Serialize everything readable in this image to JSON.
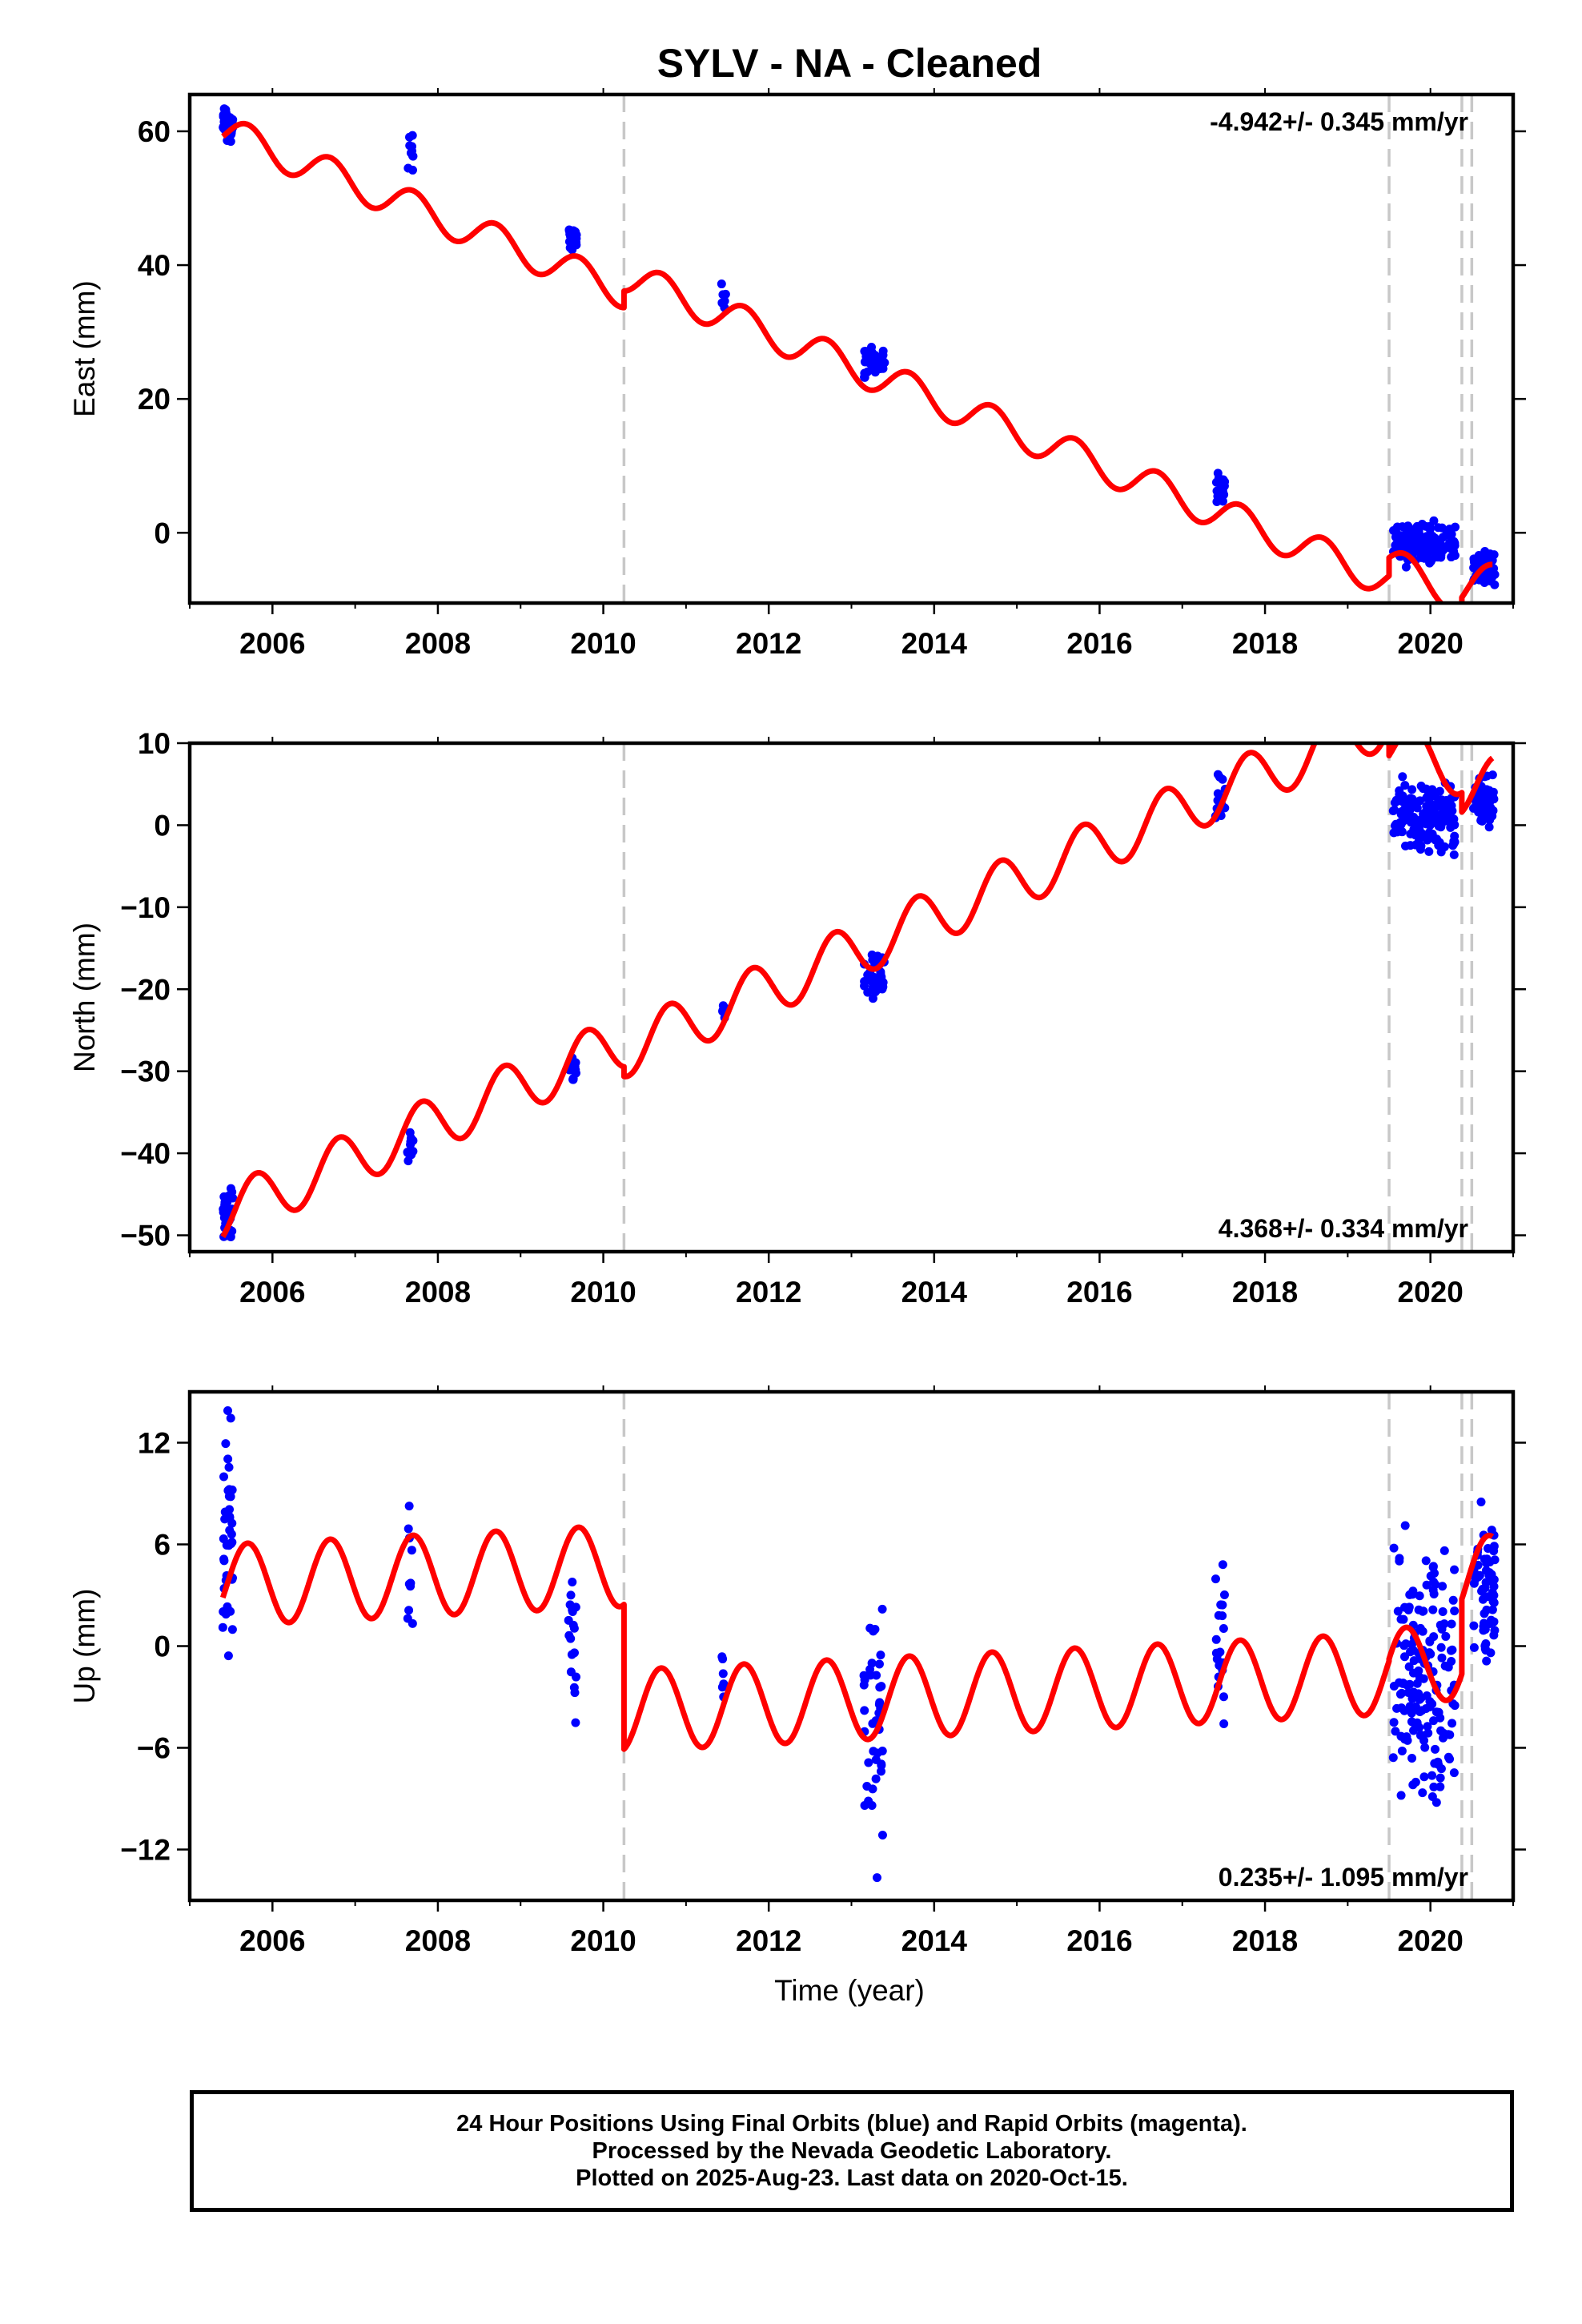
{
  "title": "SYLV  - NA - Cleaned",
  "colors": {
    "model": "#ff0000",
    "final_orbits": "#0000ff",
    "breaks": "#c8c8c8",
    "frame": "#000000"
  },
  "x_axis": {
    "label": "Time (year)",
    "range": [
      2005.0,
      2021.0
    ],
    "ticks": [
      2006,
      2008,
      2010,
      2012,
      2014,
      2016,
      2018,
      2020
    ],
    "tick_labels": [
      "2006",
      "2008",
      "2010",
      "2012",
      "2014",
      "2016",
      "2018",
      "2020"
    ]
  },
  "breaks": [
    2010.25,
    2019.5,
    2020.38,
    2020.5
  ],
  "chart_data": [
    {
      "type": "scatter",
      "name": "east",
      "ylabel": "East (mm)",
      "ylim": [
        -10.5,
        65.5
      ],
      "yticks": [
        0,
        20,
        40,
        60
      ],
      "rate_label": "-4.942+/- 0.345 mm/yr",
      "rate_position": "top-right",
      "model": {
        "segments": [
          {
            "x0": 2005.4,
            "x1": 2010.25,
            "y0": 60.0,
            "slope": -4.942,
            "amp": 2.5,
            "phase": 0.45
          },
          {
            "x0": 2010.25,
            "x1": 2019.5,
            "y0": 38.5,
            "slope": -4.942,
            "amp": 2.5,
            "phase": 0.45
          },
          {
            "x0": 2019.5,
            "x1": 2020.38,
            "y0": -4.5,
            "slope": -6.0,
            "amp": 2.5,
            "phase": 0.45
          },
          {
            "x0": 2020.38,
            "x1": 2020.75,
            "y0": -8.6,
            "slope": 4.0,
            "amp": 2.5,
            "phase": 0.45
          }
        ]
      },
      "clusters": [
        {
          "start": 2005.4,
          "end": 2005.52,
          "center": 61.0,
          "spread": 2.0,
          "n": 40
        },
        {
          "start": 2007.63,
          "end": 2007.7,
          "center": 56.5,
          "spread": 1.6,
          "n": 10
        },
        {
          "start": 2009.58,
          "end": 2009.68,
          "center": 44.2,
          "spread": 1.5,
          "n": 18
        },
        {
          "start": 2011.43,
          "end": 2011.48,
          "center": 35.5,
          "spread": 1.2,
          "n": 6
        },
        {
          "start": 2013.15,
          "end": 2013.4,
          "center": 25.5,
          "spread": 1.4,
          "n": 40
        },
        {
          "start": 2017.4,
          "end": 2017.52,
          "center": 6.5,
          "spread": 1.5,
          "n": 20
        },
        {
          "start": 2019.55,
          "end": 2020.3,
          "center": -1.5,
          "spread": 1.7,
          "n": 160
        },
        {
          "start": 2020.52,
          "end": 2020.78,
          "center": -5.0,
          "spread": 1.7,
          "n": 60
        }
      ]
    },
    {
      "type": "scatter",
      "name": "north",
      "ylabel": "North (mm)",
      "ylim": [
        -52,
        10
      ],
      "yticks": [
        -50,
        -40,
        -30,
        -20,
        -10,
        0,
        10
      ],
      "rate_label": "4.368+/- 0.334 mm/yr",
      "rate_position": "bottom-right",
      "model": {
        "segments": [
          {
            "x0": 2005.4,
            "x1": 2010.25,
            "y0": -47.5,
            "slope": 4.368,
            "amp": 3.3,
            "phase": 0.55
          },
          {
            "x0": 2010.25,
            "x1": 2019.5,
            "y0": -27.5,
            "slope": 4.368,
            "amp": 3.3,
            "phase": 0.55
          },
          {
            "x0": 2019.5,
            "x1": 2020.38,
            "y0": 9.5,
            "slope": -3.0,
            "amp": 3.3,
            "phase": 0.55
          },
          {
            "x0": 2020.38,
            "x1": 2020.75,
            "y0": 4.5,
            "slope": 1.5,
            "amp": 3.3,
            "phase": 0.55
          }
        ]
      },
      "clusters": [
        {
          "start": 2005.4,
          "end": 2005.52,
          "center": -48.0,
          "spread": 2.2,
          "n": 40
        },
        {
          "start": 2007.63,
          "end": 2007.7,
          "center": -39.5,
          "spread": 1.0,
          "n": 10
        },
        {
          "start": 2009.58,
          "end": 2009.68,
          "center": -29.8,
          "spread": 1.0,
          "n": 18
        },
        {
          "start": 2011.43,
          "end": 2011.48,
          "center": -22.5,
          "spread": 0.7,
          "n": 6
        },
        {
          "start": 2013.15,
          "end": 2013.4,
          "center": -18.5,
          "spread": 2.2,
          "n": 40
        },
        {
          "start": 2017.4,
          "end": 2017.52,
          "center": 3.0,
          "spread": 1.6,
          "n": 20
        },
        {
          "start": 2019.55,
          "end": 2020.3,
          "center": 1.0,
          "spread": 2.2,
          "n": 160
        },
        {
          "start": 2020.52,
          "end": 2020.78,
          "center": 3.0,
          "spread": 1.5,
          "n": 60
        }
      ]
    },
    {
      "type": "scatter",
      "name": "up",
      "ylabel": "Up (mm)",
      "ylim": [
        -15,
        15
      ],
      "yticks": [
        -12,
        -6,
        0,
        6,
        12
      ],
      "ytick_labels": [
        "−12",
        "−6",
        "0",
        "6",
        "12"
      ],
      "rate_label": "0.235+/- 1.095 mm/yr",
      "rate_position": "bottom-right",
      "model": {
        "segments": [
          {
            "x0": 2005.4,
            "x1": 2010.25,
            "y0": 3.6,
            "slope": 0.235,
            "amp": 2.4,
            "phase": 0.45
          },
          {
            "x0": 2010.25,
            "x1": 2019.5,
            "y0": -3.8,
            "slope": 0.235,
            "amp": 2.4,
            "phase": 0.45
          },
          {
            "x0": 2019.5,
            "x1": 2020.38,
            "y0": -1.5,
            "slope": 1.0,
            "amp": 2.4,
            "phase": 0.45
          },
          {
            "x0": 2020.38,
            "x1": 2020.75,
            "y0": 3.8,
            "slope": 1.0,
            "amp": 2.4,
            "phase": 0.45
          }
        ]
      },
      "clusters": [
        {
          "start": 2005.4,
          "end": 2005.52,
          "center": 6.5,
          "spread": 3.5,
          "n": 40
        },
        {
          "start": 2007.63,
          "end": 2007.7,
          "center": 5.0,
          "spread": 3.5,
          "n": 10
        },
        {
          "start": 2009.58,
          "end": 2009.68,
          "center": 0.5,
          "spread": 3.5,
          "n": 18
        },
        {
          "start": 2011.43,
          "end": 2011.48,
          "center": -2.0,
          "spread": 1.0,
          "n": 6
        },
        {
          "start": 2013.15,
          "end": 2013.4,
          "center": -5.0,
          "spread": 4.5,
          "n": 40
        },
        {
          "start": 2017.4,
          "end": 2017.52,
          "center": 0.5,
          "spread": 3.5,
          "n": 20
        },
        {
          "start": 2019.55,
          "end": 2020.3,
          "center": -2.0,
          "spread": 5.0,
          "n": 160
        },
        {
          "start": 2020.52,
          "end": 2020.78,
          "center": 3.5,
          "spread": 2.5,
          "n": 60
        }
      ]
    }
  ],
  "footer": {
    "line1": "24 Hour Positions Using Final Orbits (blue) and Rapid Orbits (magenta).",
    "line2": "Processed by the Nevada Geodetic Laboratory.",
    "line3": "Plotted on 2025-Aug-23. Last data on 2020-Oct-15."
  }
}
